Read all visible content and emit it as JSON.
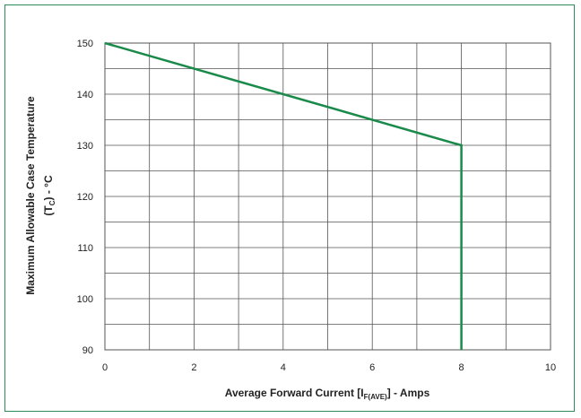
{
  "chart_data": {
    "type": "line",
    "xlabel": {
      "main": "Average Forward Current [I",
      "sub": "F(AVE)",
      "tail": "] - Amps"
    },
    "ylabel": {
      "line1": "Maximum Allowable Case Temperature",
      "line2_pre": "(T",
      "line2_sub": "C",
      "line2_post": ") - °C"
    },
    "xlim": [
      0,
      10
    ],
    "ylim": [
      90,
      150
    ],
    "x_ticks": [
      0,
      2,
      4,
      6,
      8,
      10
    ],
    "y_ticks": [
      90,
      100,
      110,
      120,
      130,
      140,
      150
    ],
    "grid": true,
    "line_color": "#1a8a4a",
    "grid_color": "#555555",
    "series": [
      {
        "points": [
          [
            0,
            150
          ],
          [
            8,
            130
          ],
          [
            8,
            90
          ]
        ]
      }
    ]
  }
}
